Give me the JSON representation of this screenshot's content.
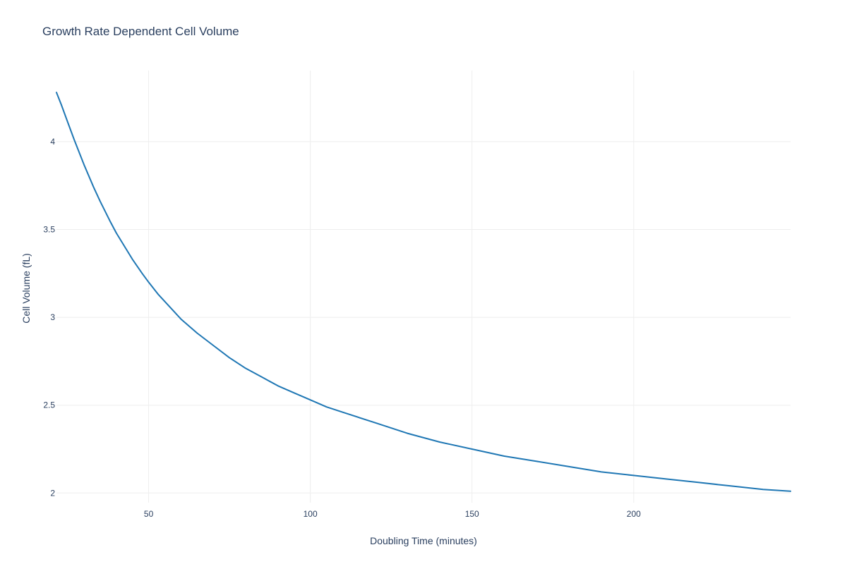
{
  "chart_data": {
    "type": "line",
    "title": "Growth Rate Dependent Cell Volume",
    "xlabel": "Doubling Time (minutes)",
    "ylabel": "Cell Volume (fL)",
    "xlim": [
      21.5,
      248.5
    ],
    "ylim": [
      1.945,
      4.405
    ],
    "x_ticks": [
      50,
      100,
      150,
      200
    ],
    "x_tick_labels": [
      "50",
      "100",
      "150",
      "200"
    ],
    "y_ticks": [
      2,
      2.5,
      3,
      3.5,
      4
    ],
    "y_tick_labels": [
      "2",
      "2.5",
      "3",
      "3.5",
      "4"
    ],
    "grid": true,
    "legend": "none",
    "colors": {
      "line": "#1f77b4",
      "grid": "#eeeeee",
      "text": "#2a3f5f"
    },
    "series": [
      {
        "x": [
          21.5,
          23,
          25,
          27,
          30,
          33,
          35,
          38,
          40,
          43,
          45,
          48,
          50,
          53,
          55,
          58,
          60,
          65,
          70,
          75,
          80,
          85,
          90,
          95,
          100,
          105,
          110,
          120,
          130,
          140,
          150,
          160,
          170,
          180,
          190,
          200,
          210,
          220,
          230,
          240,
          248.5
        ],
        "y": [
          4.28,
          4.21,
          4.11,
          4.01,
          3.87,
          3.74,
          3.66,
          3.55,
          3.48,
          3.39,
          3.33,
          3.25,
          3.2,
          3.13,
          3.09,
          3.03,
          2.99,
          2.91,
          2.84,
          2.77,
          2.71,
          2.66,
          2.61,
          2.57,
          2.53,
          2.49,
          2.46,
          2.4,
          2.34,
          2.29,
          2.25,
          2.21,
          2.18,
          2.15,
          2.12,
          2.1,
          2.08,
          2.06,
          2.04,
          2.02,
          2.01
        ]
      }
    ]
  }
}
